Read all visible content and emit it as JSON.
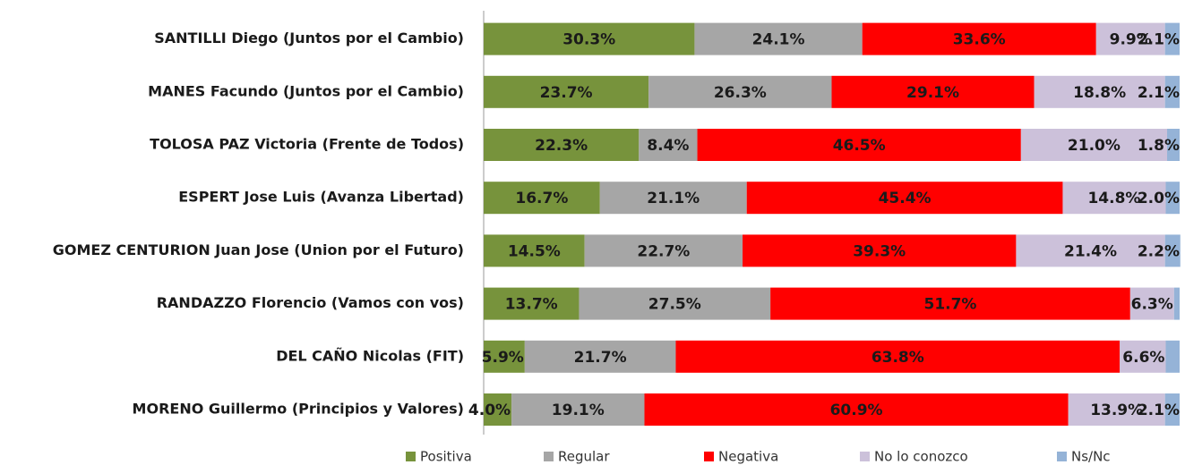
{
  "chart_data": {
    "type": "stacked-bar-horizontal",
    "categories": [
      "SANTILLI Diego (Juntos por el Cambio)",
      "MANES Facundo (Juntos por el Cambio)",
      "TOLOSA PAZ Victoria (Frente de Todos)",
      "ESPERT Jose Luis (Avanza Libertad)",
      "GOMEZ CENTURION Juan Jose (Union por el Futuro)",
      "RANDAZZO Florencio (Vamos con vos)",
      "DEL CAÑO Nicolas (FIT)",
      "MORENO Guillermo (Principios y Valores)"
    ],
    "series": [
      {
        "name": "Positiva",
        "color": "#77933c",
        "values": [
          30.3,
          23.7,
          22.3,
          16.7,
          14.5,
          13.7,
          5.9,
          4.0
        ],
        "value_labels": [
          "30.3%",
          "23.7%",
          "22.3%",
          "16.7%",
          "14.5%",
          "13.7%",
          "5.9%",
          "4.0%"
        ]
      },
      {
        "name": "Regular",
        "color": "#a6a6a6",
        "values": [
          24.1,
          26.3,
          8.4,
          21.1,
          22.7,
          27.5,
          21.7,
          19.1
        ],
        "value_labels": [
          "24.1%",
          "26.3%",
          "8.4%",
          "21.1%",
          "22.7%",
          "27.5%",
          "21.7%",
          "19.1%"
        ]
      },
      {
        "name": "Negativa",
        "color": "#ff0000",
        "values": [
          33.6,
          29.1,
          46.5,
          45.4,
          39.3,
          51.7,
          63.8,
          60.9
        ],
        "value_labels": [
          "33.6%",
          "29.1%",
          "46.5%",
          "45.4%",
          "39.3%",
          "51.7%",
          "63.8%",
          "60.9%"
        ]
      },
      {
        "name": "No lo conozco",
        "color": "#ccc1da",
        "values": [
          9.9,
          18.8,
          21.0,
          14.8,
          21.4,
          6.3,
          6.6,
          13.9
        ],
        "value_labels": [
          "9.9%",
          "18.8%",
          "21.0%",
          "14.8%",
          "21.4%",
          "6.3%",
          "6.6%",
          "13.9%"
        ]
      },
      {
        "name": "Ns/Nc",
        "color": "#95b3d7",
        "values": [
          2.1,
          2.1,
          1.8,
          2.0,
          2.2,
          0.8,
          2.0,
          2.1
        ],
        "value_labels": [
          "2.1%",
          "2.1%",
          "1.8%",
          "2.0%",
          "2.2%",
          null,
          null,
          "2.1%"
        ]
      }
    ],
    "xlim": [
      0,
      100
    ]
  }
}
